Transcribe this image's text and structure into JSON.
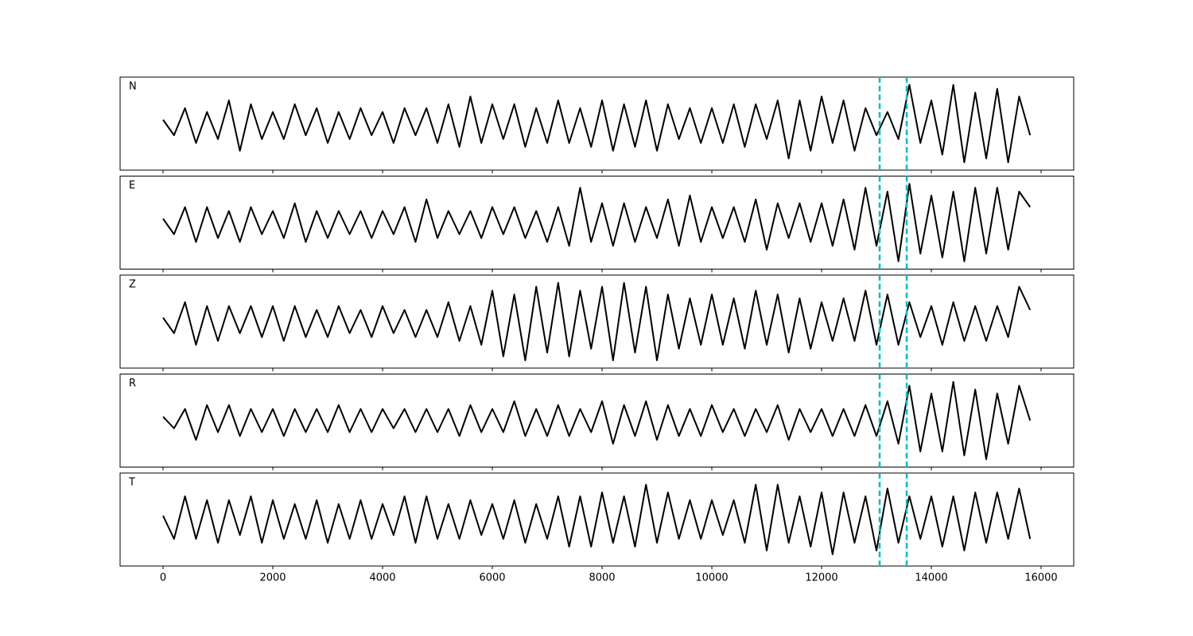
{
  "chart_data": {
    "type": "line",
    "subplots": true,
    "x": [
      0,
      200,
      400,
      600,
      800,
      1000,
      1200,
      1400,
      1600,
      1800,
      2000,
      2200,
      2400,
      2600,
      2800,
      3000,
      3200,
      3400,
      3600,
      3800,
      4000,
      4200,
      4400,
      4600,
      4800,
      5000,
      5200,
      5400,
      5600,
      5800,
      6000,
      6200,
      6400,
      6600,
      6800,
      7000,
      7200,
      7400,
      7600,
      7800,
      8000,
      8200,
      8400,
      8600,
      8800,
      9000,
      9200,
      9400,
      9600,
      9800,
      10000,
      10200,
      10400,
      10600,
      10800,
      11000,
      11200,
      11400,
      11600,
      11800,
      12000,
      12200,
      12400,
      12600,
      12800,
      13000,
      13200,
      13400,
      13600,
      13800,
      14000,
      14200,
      14400,
      14600,
      14800,
      15000,
      15200,
      15400,
      15600,
      15800
    ],
    "xlim": [
      -783,
      16594
    ],
    "xticks": [
      0,
      2000,
      4000,
      6000,
      8000,
      10000,
      12000,
      14000,
      16000
    ],
    "ylim": [
      -1.2,
      1.2
    ],
    "vlines": [
      13058,
      13551
    ],
    "vline_color": "#00bfbf",
    "line_color": "#000000",
    "series": [
      {
        "name": "N",
        "values": [
          0.1,
          -0.3,
          0.4,
          -0.5,
          0.3,
          -0.4,
          0.6,
          -0.7,
          0.5,
          -0.4,
          0.3,
          -0.4,
          0.5,
          -0.3,
          0.4,
          -0.5,
          0.3,
          -0.4,
          0.4,
          -0.3,
          0.3,
          -0.5,
          0.4,
          -0.3,
          0.4,
          -0.5,
          0.5,
          -0.6,
          0.7,
          -0.5,
          0.5,
          -0.4,
          0.5,
          -0.6,
          0.4,
          -0.5,
          0.6,
          -0.5,
          0.4,
          -0.6,
          0.6,
          -0.7,
          0.5,
          -0.6,
          0.6,
          -0.7,
          0.5,
          -0.4,
          0.4,
          -0.5,
          0.4,
          -0.5,
          0.5,
          -0.6,
          0.5,
          -0.4,
          0.6,
          -0.9,
          0.6,
          -0.7,
          0.7,
          -0.5,
          0.6,
          -0.7,
          0.4,
          -0.3,
          0.3,
          -0.4,
          1.0,
          -0.5,
          0.6,
          -0.8,
          1.0,
          -1.0,
          0.8,
          -0.9,
          0.9,
          -1.0,
          0.7,
          -0.3
        ]
      },
      {
        "name": "E",
        "values": [
          0.1,
          -0.3,
          0.4,
          -0.5,
          0.4,
          -0.4,
          0.3,
          -0.5,
          0.4,
          -0.3,
          0.3,
          -0.4,
          0.5,
          -0.5,
          0.3,
          -0.4,
          0.3,
          -0.3,
          0.3,
          -0.4,
          0.3,
          -0.3,
          0.4,
          -0.5,
          0.6,
          -0.4,
          0.3,
          -0.3,
          0.3,
          -0.4,
          0.4,
          -0.3,
          0.4,
          -0.4,
          0.3,
          -0.5,
          0.4,
          -0.6,
          0.9,
          -0.5,
          0.5,
          -0.6,
          0.5,
          -0.5,
          0.4,
          -0.4,
          0.6,
          -0.6,
          0.7,
          -0.5,
          0.4,
          -0.4,
          0.4,
          -0.5,
          0.6,
          -0.7,
          0.5,
          -0.4,
          0.5,
          -0.5,
          0.5,
          -0.6,
          0.6,
          -0.7,
          0.9,
          -0.6,
          0.8,
          -1.0,
          1.0,
          -0.8,
          0.7,
          -0.9,
          0.8,
          -1.0,
          0.9,
          -0.8,
          0.9,
          -0.7,
          0.8,
          0.4
        ]
      },
      {
        "name": "Z",
        "values": [
          0.1,
          -0.3,
          0.5,
          -0.6,
          0.4,
          -0.5,
          0.4,
          -0.3,
          0.4,
          -0.4,
          0.4,
          -0.5,
          0.4,
          -0.4,
          0.3,
          -0.4,
          0.4,
          -0.3,
          0.3,
          -0.4,
          0.4,
          -0.3,
          0.3,
          -0.4,
          0.3,
          -0.4,
          0.5,
          -0.5,
          0.4,
          -0.6,
          0.8,
          -0.9,
          0.7,
          -1.0,
          0.9,
          -0.8,
          1.0,
          -0.9,
          0.8,
          -0.7,
          0.9,
          -1.0,
          1.0,
          -0.8,
          0.9,
          -1.0,
          0.7,
          -0.7,
          0.6,
          -0.6,
          0.7,
          -0.6,
          0.6,
          -0.7,
          0.8,
          -0.6,
          0.7,
          -0.8,
          0.6,
          -0.7,
          0.5,
          -0.5,
          0.6,
          -0.5,
          0.8,
          -0.6,
          0.7,
          -0.6,
          0.5,
          -0.4,
          0.4,
          -0.6,
          0.5,
          -0.5,
          0.4,
          -0.5,
          0.4,
          -0.4,
          0.9,
          0.3
        ]
      },
      {
        "name": "R",
        "values": [
          0.1,
          -0.2,
          0.3,
          -0.5,
          0.4,
          -0.3,
          0.4,
          -0.4,
          0.3,
          -0.3,
          0.3,
          -0.4,
          0.3,
          -0.3,
          0.3,
          -0.3,
          0.4,
          -0.3,
          0.3,
          -0.3,
          0.3,
          -0.2,
          0.3,
          -0.3,
          0.3,
          -0.3,
          0.3,
          -0.4,
          0.4,
          -0.3,
          0.3,
          -0.3,
          0.5,
          -0.4,
          0.3,
          -0.4,
          0.4,
          -0.4,
          0.3,
          -0.3,
          0.5,
          -0.6,
          0.4,
          -0.4,
          0.5,
          -0.5,
          0.4,
          -0.4,
          0.3,
          -0.4,
          0.4,
          -0.3,
          0.3,
          -0.4,
          0.3,
          -0.3,
          0.4,
          -0.5,
          0.3,
          -0.3,
          0.3,
          -0.4,
          0.3,
          -0.4,
          0.4,
          -0.4,
          0.5,
          -0.6,
          0.9,
          -0.8,
          0.7,
          -0.8,
          1.0,
          -0.9,
          0.8,
          -1.0,
          0.7,
          -0.6,
          0.9,
          0.0
        ]
      },
      {
        "name": "T",
        "values": [
          0.1,
          -0.5,
          0.6,
          -0.5,
          0.5,
          -0.6,
          0.5,
          -0.4,
          0.6,
          -0.6,
          0.5,
          -0.5,
          0.4,
          -0.5,
          0.5,
          -0.6,
          0.4,
          -0.5,
          0.5,
          -0.5,
          0.4,
          -0.4,
          0.6,
          -0.6,
          0.6,
          -0.5,
          0.4,
          -0.5,
          0.5,
          -0.4,
          0.4,
          -0.5,
          0.5,
          -0.6,
          0.4,
          -0.5,
          0.6,
          -0.7,
          0.6,
          -0.7,
          0.7,
          -0.6,
          0.6,
          -0.7,
          0.9,
          -0.6,
          0.7,
          -0.5,
          0.5,
          -0.5,
          0.5,
          -0.4,
          0.5,
          -0.6,
          0.9,
          -0.8,
          0.9,
          -0.6,
          0.6,
          -0.7,
          0.7,
          -0.9,
          0.7,
          -0.6,
          0.6,
          -0.8,
          0.8,
          -0.6,
          0.6,
          -0.5,
          0.6,
          -0.7,
          0.6,
          -0.8,
          0.7,
          -0.6,
          0.7,
          -0.5,
          0.8,
          -0.5
        ]
      }
    ]
  }
}
